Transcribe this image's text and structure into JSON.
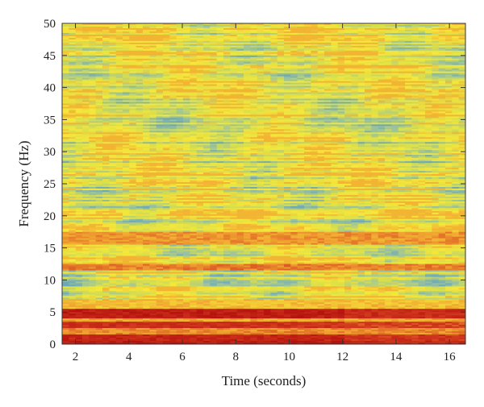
{
  "chart_data": {
    "type": "heatmap",
    "title": "",
    "xlabel": "Time (seconds)",
    "ylabel": "Frequency (Hz)",
    "xlim": [
      1.5,
      16.6
    ],
    "ylim": [
      0,
      50
    ],
    "x_ticks": [
      2,
      4,
      6,
      8,
      10,
      12,
      14,
      16
    ],
    "y_ticks": [
      0,
      5,
      10,
      15,
      20,
      25,
      30,
      35,
      40,
      45,
      50
    ],
    "grid": false,
    "legend": "none",
    "colorscale": [
      "#6aa7b8",
      "#9ec49a",
      "#d9df4a",
      "#f6e83a",
      "#f0a030",
      "#d23a1e",
      "#b5120e"
    ],
    "bands": [
      {
        "f_low": 0.0,
        "f_high": 0.6,
        "level": 0.97
      },
      {
        "f_low": 0.6,
        "f_high": 1.6,
        "level": 0.92
      },
      {
        "f_low": 1.6,
        "f_high": 2.4,
        "level": 0.7
      },
      {
        "f_low": 2.4,
        "f_high": 3.4,
        "level": 0.88
      },
      {
        "f_low": 3.4,
        "f_high": 4.0,
        "level": 0.65
      },
      {
        "f_low": 4.0,
        "f_high": 5.4,
        "level": 0.95
      },
      {
        "f_low": 5.4,
        "f_high": 7.0,
        "level": 0.6
      },
      {
        "f_low": 11.5,
        "f_high": 12.5,
        "level": 0.72
      },
      {
        "f_low": 15.5,
        "f_high": 17.5,
        "level": 0.68
      }
    ]
  }
}
